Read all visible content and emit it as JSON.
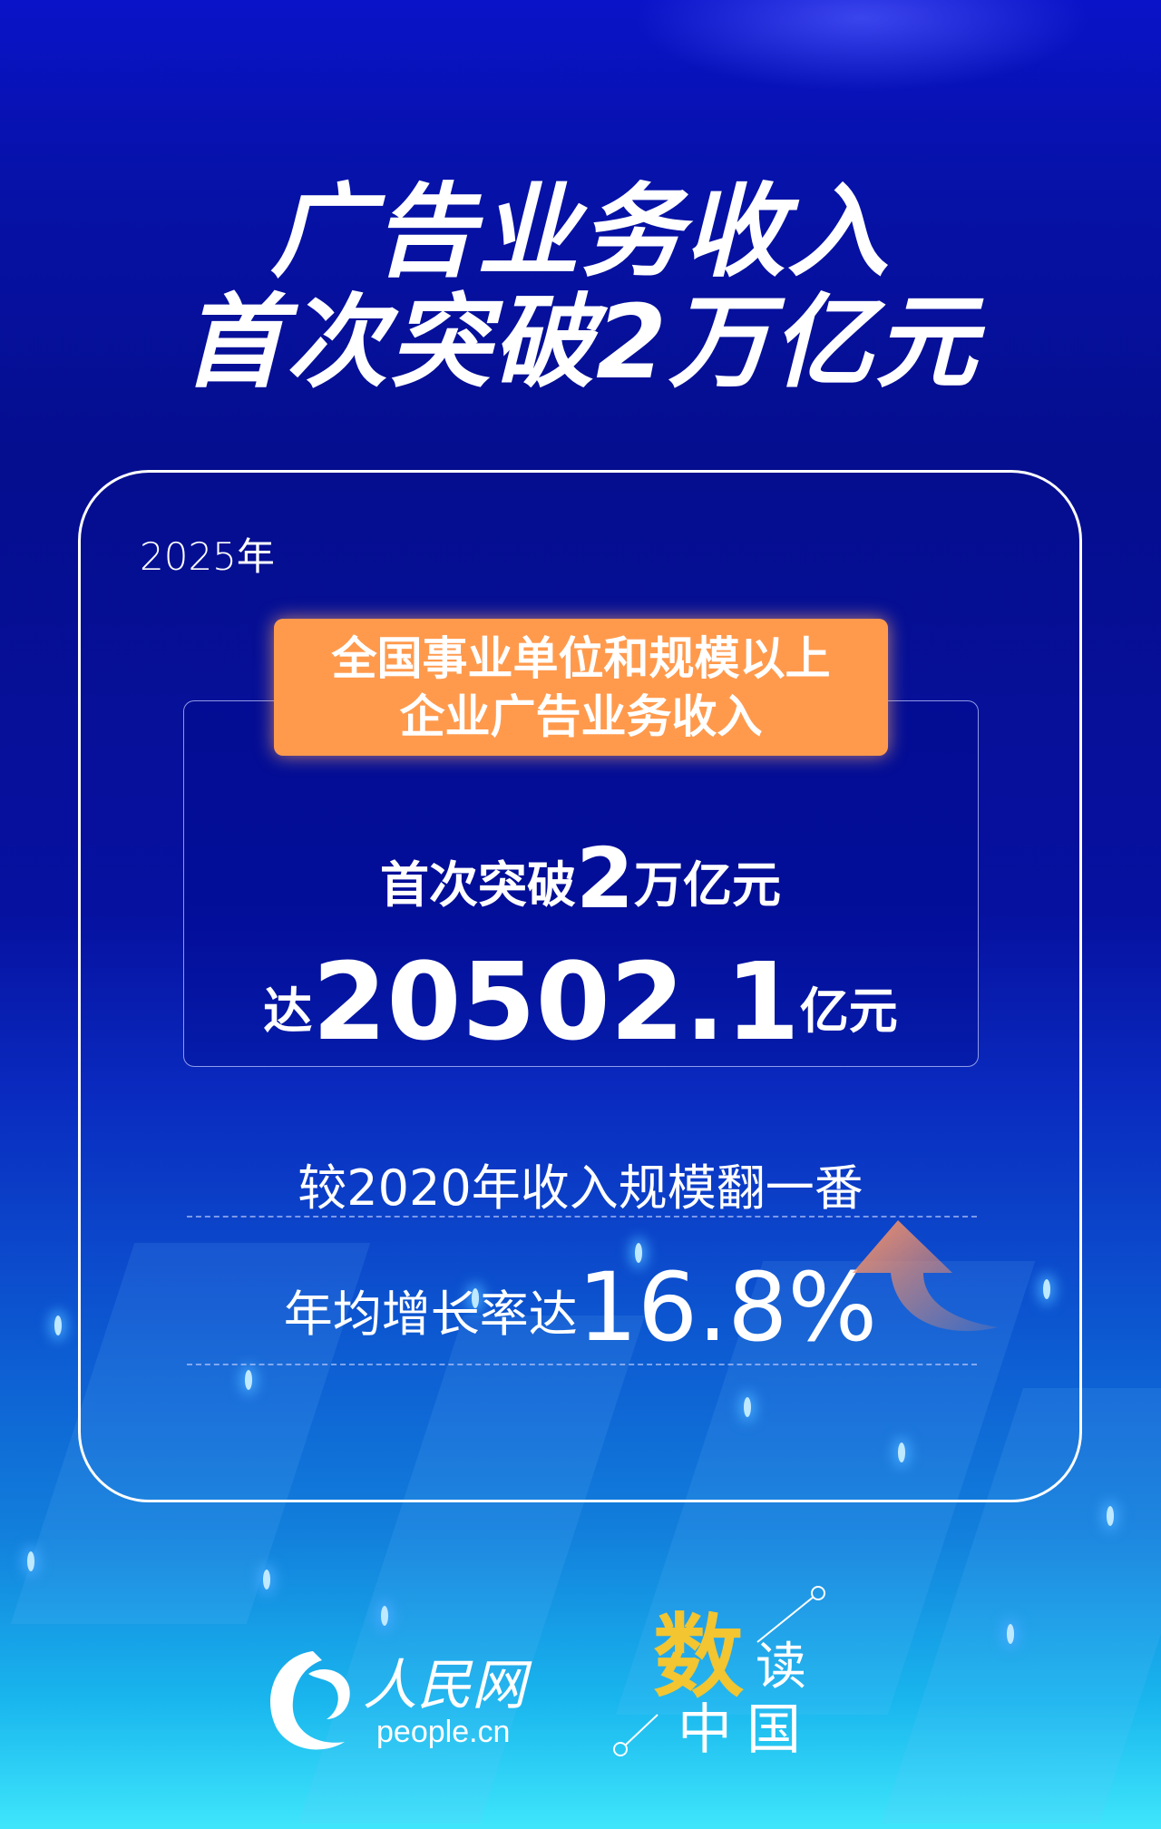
{
  "title": {
    "line1": "广告业务收入",
    "line2": "首次突破2万亿元"
  },
  "card": {
    "year": "2025年",
    "label_line1": "全国事业单位和规模以上",
    "label_line2": "企业广告业务收入",
    "stat1_prefix": "首次突破",
    "stat1_number": "2",
    "stat1_suffix": "万亿元",
    "stat2_prefix": "达",
    "stat2_number": "20502.1",
    "stat2_suffix": "亿元",
    "compare": "较2020年收入规模翻一番",
    "growth_prefix": "年均增长率达",
    "growth_value": "16.8%"
  },
  "footer": {
    "logo_people_cn": "人民网",
    "logo_people_url_text": "people.cn",
    "logo_shudu_1": "数",
    "logo_shudu_2": "读",
    "logo_shudu_3": "中国"
  },
  "colors": {
    "accent_orange": "#ff9a4d",
    "brand_yellow": "#f2c531",
    "background_blue": "#050e8e"
  },
  "icons": [
    "up-arrow-icon",
    "people-cn-logo-icon"
  ]
}
